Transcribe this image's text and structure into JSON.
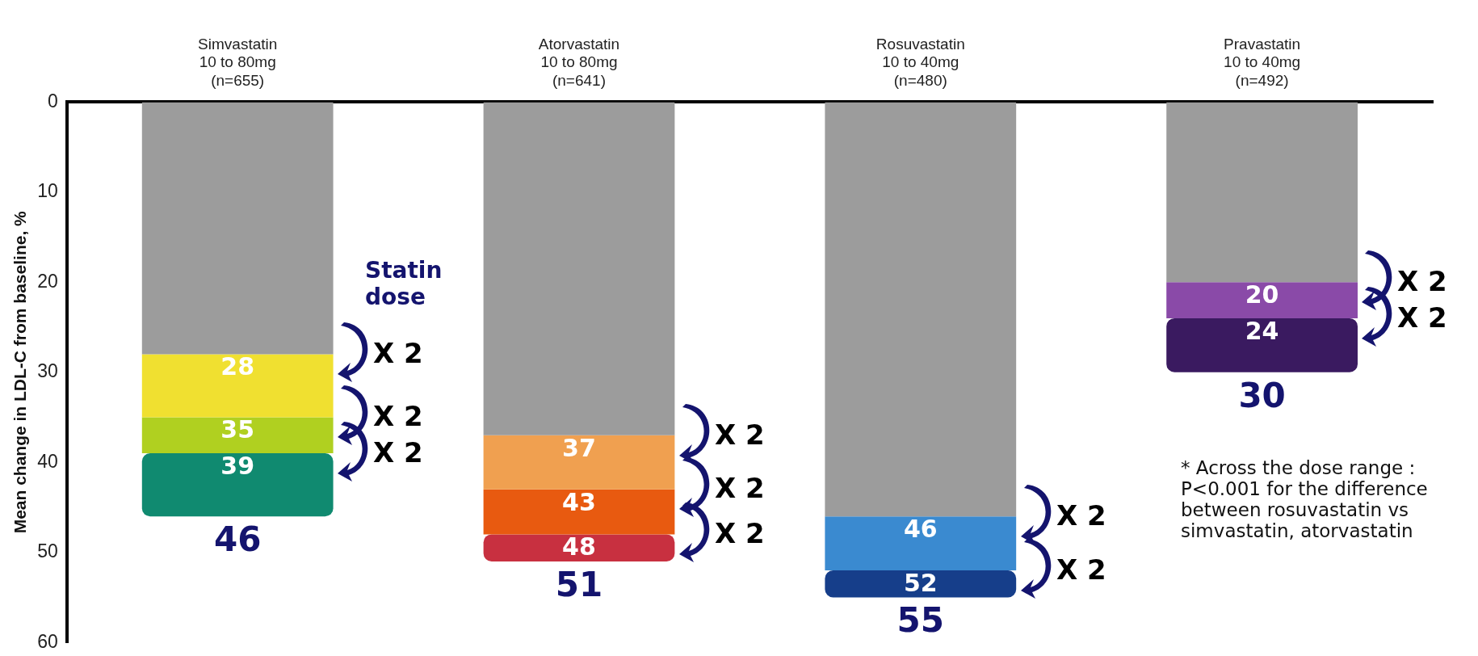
{
  "chart_data": {
    "type": "bar",
    "stacked": true,
    "legend": false,
    "grid": false,
    "ylabel": "Mean change in LDL-C from baseline, %",
    "categories": [
      "Simvastatin\n10 to 80mg\n(n=655)",
      "Atorvastatin\n10 to 80mg\n(n=641)",
      "Rosuvastatin\n10 to 40mg\n(n=480)",
      "Pravastatin\n10 to 40mg\n(n=492)"
    ],
    "ylim": [
      60,
      0
    ],
    "yticks": [
      0,
      10,
      20,
      30,
      40,
      50,
      60
    ],
    "series": [
      {
        "colors": [
          "#9c9c9c",
          "#9c9c9c",
          "#9c9c9c",
          "#9c9c9c"
        ],
        "values": [
          28,
          37,
          46,
          20
        ]
      },
      {
        "colors": [
          "#f0e030",
          "#f0a050",
          "#3a8ad0",
          "#8a4aa8"
        ],
        "values": [
          7,
          6,
          6,
          4
        ]
      },
      {
        "colors": [
          "#b0d020",
          "#e85a10",
          "#163e8a",
          "#3a1a60"
        ],
        "values": [
          4,
          5,
          3,
          6
        ]
      },
      {
        "colors": [
          "#108a70",
          "#c83040",
          null,
          null
        ],
        "values": [
          7,
          3,
          null,
          null
        ]
      }
    ],
    "totals": [
      "46",
      "51",
      "55",
      "30"
    ],
    "annotations": [
      "Statin dose",
      "* Across the dose range : P<0.001 for the difference between rosuvastatin vs simvastatin, atorvastatin",
      "X 2",
      "X 2",
      "X 2",
      "X 2",
      "X 2",
      "X 2",
      "X 2",
      "X 2",
      "X 2",
      "X 2",
      {
        "text": "28",
        "x": "Simvastatin\n10 to 80mg\n(n=655)",
        "y": 28
      },
      {
        "text": "35",
        "x": "Simvastatin\n10 to 80mg\n(n=655)",
        "y": 35
      },
      {
        "text": "39",
        "x": "Simvastatin\n10 to 80mg\n(n=655)",
        "y": 39
      },
      {
        "text": "37",
        "x": "Atorvastatin\n10 to 80mg\n(n=641)",
        "y": 37
      },
      {
        "text": "43",
        "x": "Atorvastatin\n10 to 80mg\n(n=641)",
        "y": 43
      },
      {
        "text": "48",
        "x": "Atorvastatin\n10 to 80mg\n(n=641)",
        "y": 48
      },
      {
        "text": "46",
        "x": "Rosuvastatin\n10 to 40mg\n(n=480)",
        "y": 46
      },
      {
        "text": "52",
        "x": "Rosuvastatin\n10 to 40mg\n(n=480)",
        "y": 52
      },
      {
        "text": "20",
        "x": "Pravastatin\n10 to 40mg\n(n=492)",
        "y": 20
      },
      {
        "text": "24",
        "x": "Pravastatin\n10 to 40mg\n(n=492)",
        "y": 24
      }
    ]
  }
}
